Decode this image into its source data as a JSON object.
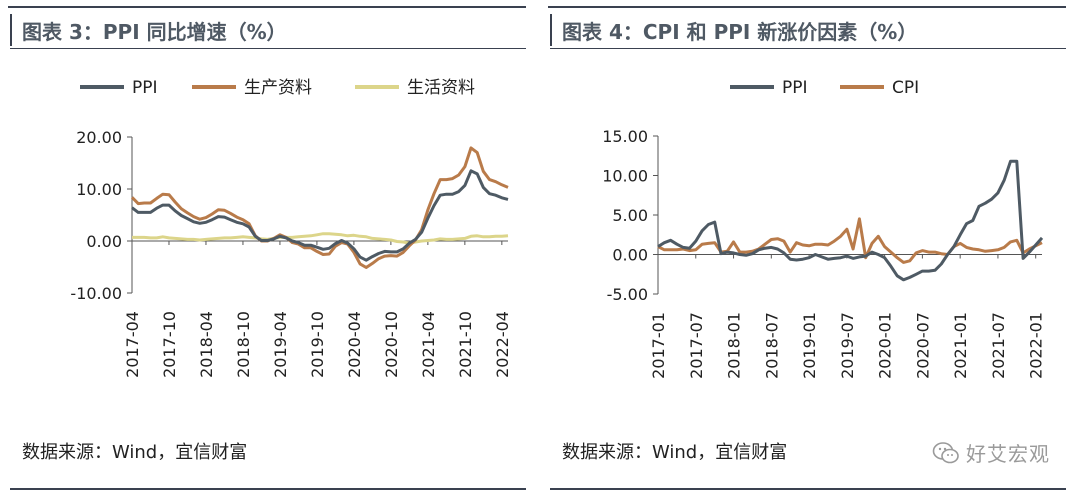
{
  "panels": [
    {
      "title": "图表 3：PPI 同比增速（%）",
      "source": "数据来源：Wind，宜信财富"
    },
    {
      "title": "图表 4：CPI 和 PPI 新涨价因素（%）",
      "source": "数据来源：Wind，宜信财富"
    }
  ],
  "watermark": {
    "text": "好艾宏观",
    "icon": "wechat-icon"
  },
  "colors": {
    "ppi": "#4e5a64",
    "orange": "#b97b4a",
    "yellow": "#dcd58a"
  },
  "chart_data": [
    {
      "type": "line",
      "title": "图表 3：PPI 同比增速（%）",
      "xlabel": "",
      "ylabel": "",
      "ylim": [
        -10,
        20
      ],
      "yticks": [
        -10,
        0,
        10,
        20
      ],
      "ytick_labels": [
        "-10.00",
        "0.00",
        "10.00",
        "20.00"
      ],
      "x_start": "2017-04",
      "xtick_labels": [
        "2017-04",
        "2017-10",
        "2018-04",
        "2018-10",
        "2019-04",
        "2019-10",
        "2020-04",
        "2020-10",
        "2021-04",
        "2021-10",
        "2022-04"
      ],
      "legend_position": "top",
      "grid": false,
      "series": [
        {
          "name": "PPI",
          "color": "#4e5a64",
          "values": [
            6.4,
            5.5,
            5.5,
            5.5,
            6.3,
            6.9,
            6.9,
            5.8,
            4.9,
            4.3,
            3.7,
            3.4,
            3.6,
            4.1,
            4.7,
            4.6,
            4.1,
            3.6,
            3.3,
            2.7,
            0.9,
            0.1,
            0.1,
            0.4,
            0.9,
            0.6,
            0.0,
            -0.3,
            -0.8,
            -0.8,
            -1.2,
            -1.6,
            -1.4,
            -0.5,
            0.1,
            -0.4,
            -1.5,
            -3.1,
            -3.7,
            -3.0,
            -2.4,
            -2.0,
            -2.1,
            -2.1,
            -1.5,
            -0.4,
            0.3,
            1.7,
            4.4,
            6.8,
            8.8,
            9.0,
            9.0,
            9.5,
            10.7,
            13.5,
            12.9,
            10.3,
            9.1,
            8.8,
            8.3,
            8.0
          ]
        },
        {
          "name": "生产资料",
          "color": "#b97b4a",
          "values": [
            8.4,
            7.2,
            7.3,
            7.3,
            8.2,
            9.0,
            8.9,
            7.5,
            6.2,
            5.4,
            4.7,
            4.2,
            4.5,
            5.2,
            6.0,
            5.9,
            5.3,
            4.6,
            4.1,
            3.3,
            1.0,
            0.0,
            0.0,
            0.5,
            1.2,
            0.7,
            -0.3,
            -0.6,
            -1.3,
            -1.3,
            -2.0,
            -2.6,
            -2.5,
            -1.0,
            -0.3,
            -0.6,
            -2.2,
            -4.4,
            -5.1,
            -4.3,
            -3.4,
            -2.9,
            -2.8,
            -2.9,
            -2.2,
            -0.9,
            0.2,
            2.2,
            6.0,
            9.1,
            11.8,
            11.8,
            12.0,
            12.7,
            14.3,
            17.9,
            17.0,
            13.4,
            11.8,
            11.4,
            10.8,
            10.3
          ]
        },
        {
          "name": "生活资料",
          "color": "#dcd58a",
          "values": [
            0.7,
            0.7,
            0.7,
            0.6,
            0.6,
            0.8,
            0.6,
            0.5,
            0.4,
            0.3,
            0.3,
            0.2,
            0.3,
            0.4,
            0.5,
            0.6,
            0.6,
            0.7,
            0.8,
            0.7,
            0.6,
            0.4,
            0.3,
            0.5,
            0.7,
            0.7,
            0.7,
            0.8,
            0.9,
            1.0,
            1.2,
            1.4,
            1.4,
            1.3,
            1.2,
            1.0,
            1.1,
            0.9,
            0.8,
            0.5,
            0.4,
            0.3,
            0.2,
            -0.1,
            -0.2,
            -0.4,
            -0.2,
            0.0,
            0.1,
            0.2,
            0.4,
            0.3,
            0.3,
            0.4,
            0.5,
            0.9,
            1.0,
            0.8,
            0.8,
            0.9,
            0.9,
            1.0
          ]
        }
      ]
    },
    {
      "type": "line",
      "title": "图表 4：CPI 和 PPI 新涨价因素（%）",
      "xlabel": "",
      "ylabel": "",
      "ylim": [
        -5,
        15
      ],
      "yticks": [
        -5,
        0,
        5,
        10,
        15
      ],
      "ytick_labels": [
        "-5.00",
        "0.00",
        "5.00",
        "10.00",
        "15.00"
      ],
      "x_start": "2017-01",
      "xtick_labels": [
        "2017-01",
        "2017-07",
        "2018-01",
        "2018-07",
        "2019-01",
        "2019-07",
        "2020-01",
        "2020-07",
        "2021-01",
        "2021-07",
        "2022-01"
      ],
      "legend_position": "top",
      "grid": false,
      "series": [
        {
          "name": "PPI",
          "color": "#4e5a64",
          "values": [
            1.0,
            1.5,
            1.8,
            1.3,
            0.9,
            0.8,
            1.7,
            3.0,
            3.8,
            4.1,
            0.1,
            0.3,
            0.2,
            0.0,
            -0.1,
            0.1,
            0.6,
            0.8,
            0.9,
            0.7,
            0.2,
            -0.6,
            -0.7,
            -0.6,
            -0.4,
            0.0,
            -0.3,
            -0.6,
            -0.5,
            -0.4,
            -0.2,
            -0.5,
            -0.3,
            -0.2,
            0.3,
            0.0,
            -0.4,
            -1.5,
            -2.7,
            -3.2,
            -2.9,
            -2.5,
            -2.1,
            -2.1,
            -2.0,
            -1.2,
            0.0,
            1.0,
            2.5,
            3.9,
            4.3,
            6.1,
            6.5,
            7.0,
            7.8,
            9.4,
            11.8,
            11.8,
            -0.5,
            0.3,
            1.2,
            2.1
          ]
        },
        {
          "name": "CPI",
          "color": "#b97b4a",
          "values": [
            1.0,
            0.6,
            0.6,
            0.6,
            0.7,
            0.5,
            0.6,
            1.3,
            1.4,
            1.5,
            0.3,
            0.4,
            1.6,
            0.3,
            0.3,
            0.4,
            0.7,
            1.3,
            1.9,
            2.0,
            1.7,
            0.3,
            1.5,
            1.2,
            1.1,
            1.3,
            1.3,
            1.2,
            1.7,
            2.3,
            3.2,
            0.7,
            4.5,
            -0.4,
            1.4,
            2.3,
            1.0,
            0.3,
            -0.4,
            -1.0,
            -0.8,
            0.2,
            0.5,
            0.3,
            0.3,
            0.1,
            0.0,
            1.0,
            1.4,
            0.9,
            0.7,
            0.6,
            0.4,
            0.5,
            0.6,
            0.9,
            1.6,
            1.8,
            0.2,
            0.7,
            1.1,
            1.5
          ]
        }
      ]
    }
  ]
}
